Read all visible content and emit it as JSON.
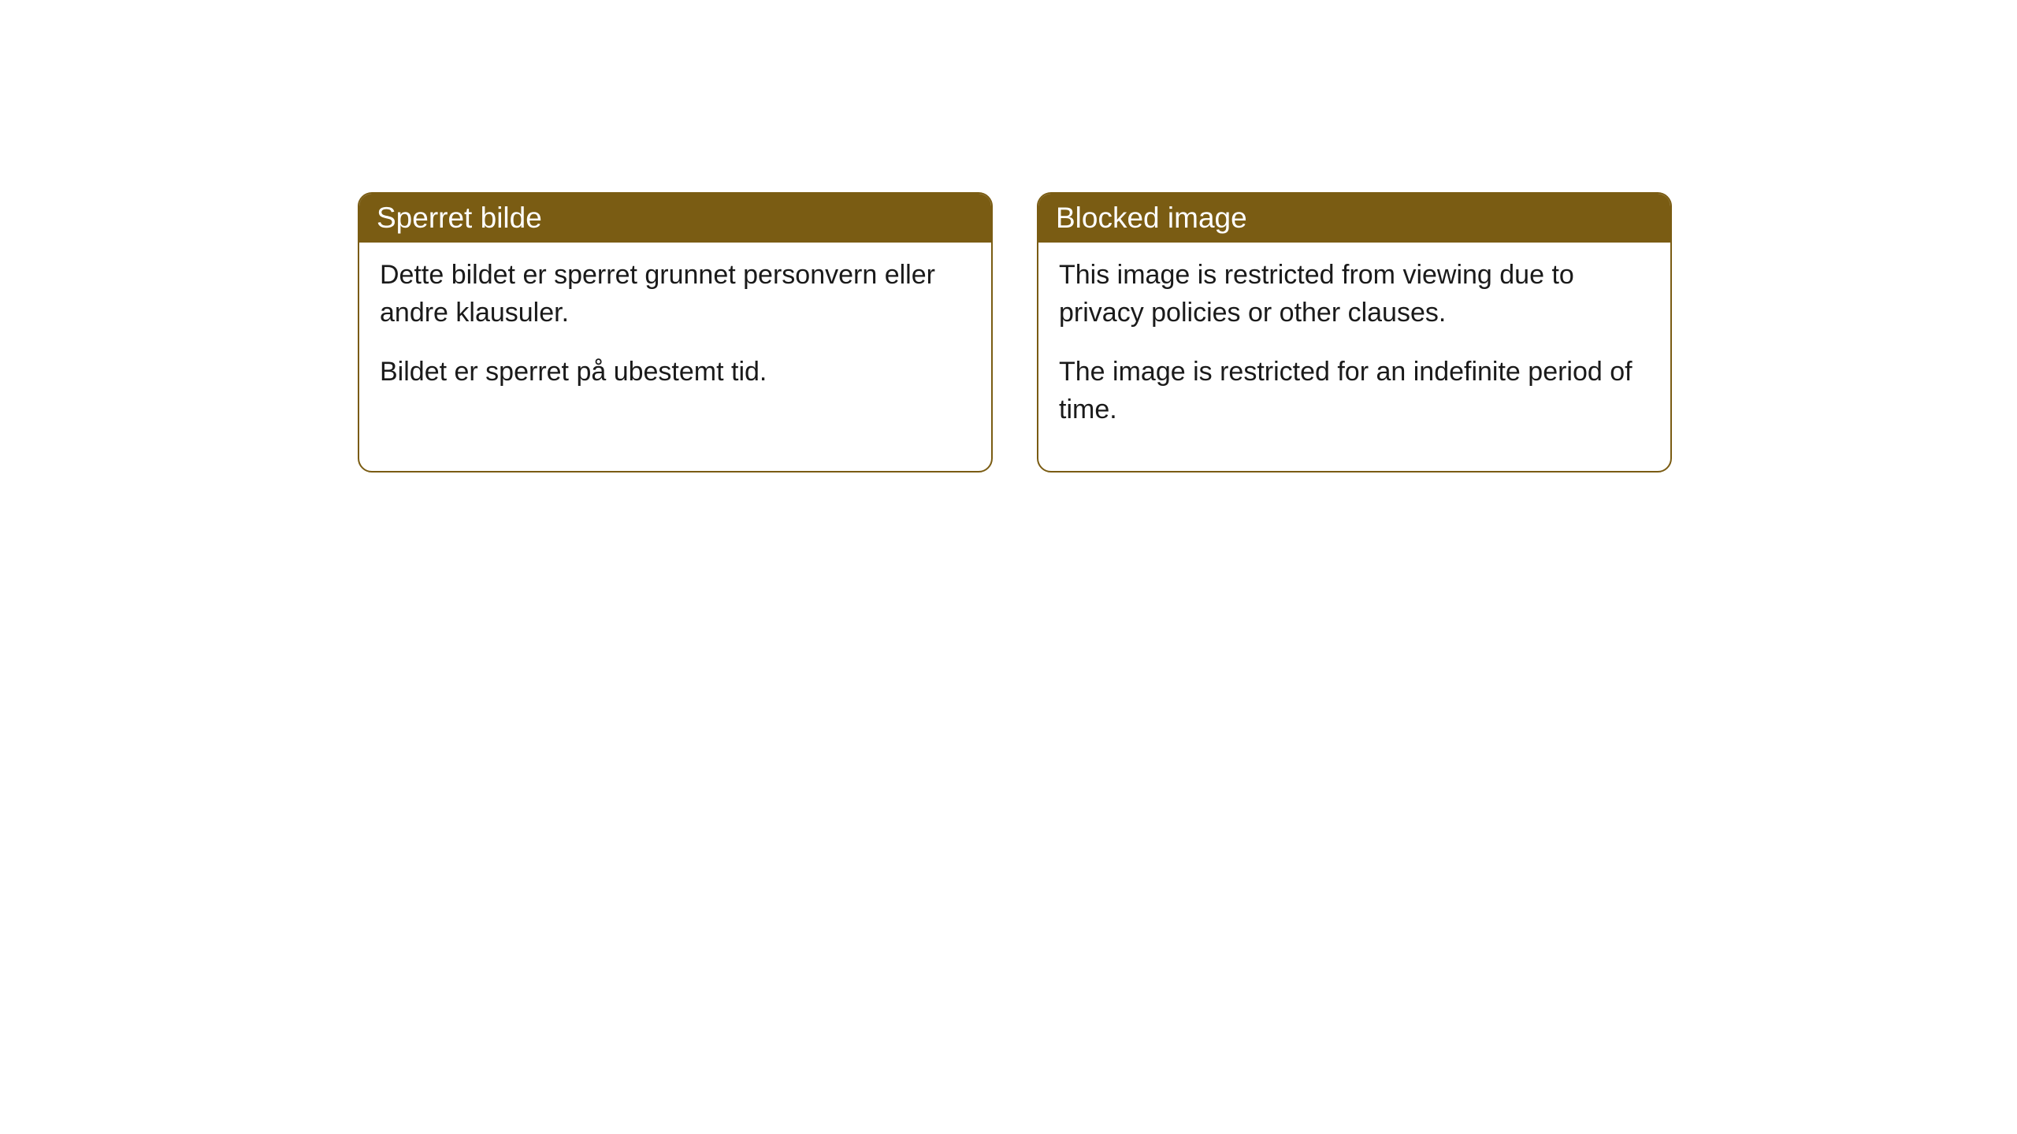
{
  "cards": [
    {
      "header": "Sperret bilde",
      "paragraph1": "Dette bildet er sperret grunnet personvern eller andre klausuler.",
      "paragraph2": "Bildet er sperret på ubestemt tid."
    },
    {
      "header": "Blocked image",
      "paragraph1": "This image is restricted from viewing due to privacy policies or other clauses.",
      "paragraph2": "The image is restricted for an indefinite period of time."
    }
  ],
  "style": {
    "header_bg_color": "#7a5c13",
    "border_color": "#7a5c13",
    "header_text_color": "#ffffff",
    "body_text_color": "#1a1a1a",
    "card_bg_color": "#ffffff",
    "border_radius": 18,
    "header_fontsize": 37,
    "body_fontsize": 34
  }
}
